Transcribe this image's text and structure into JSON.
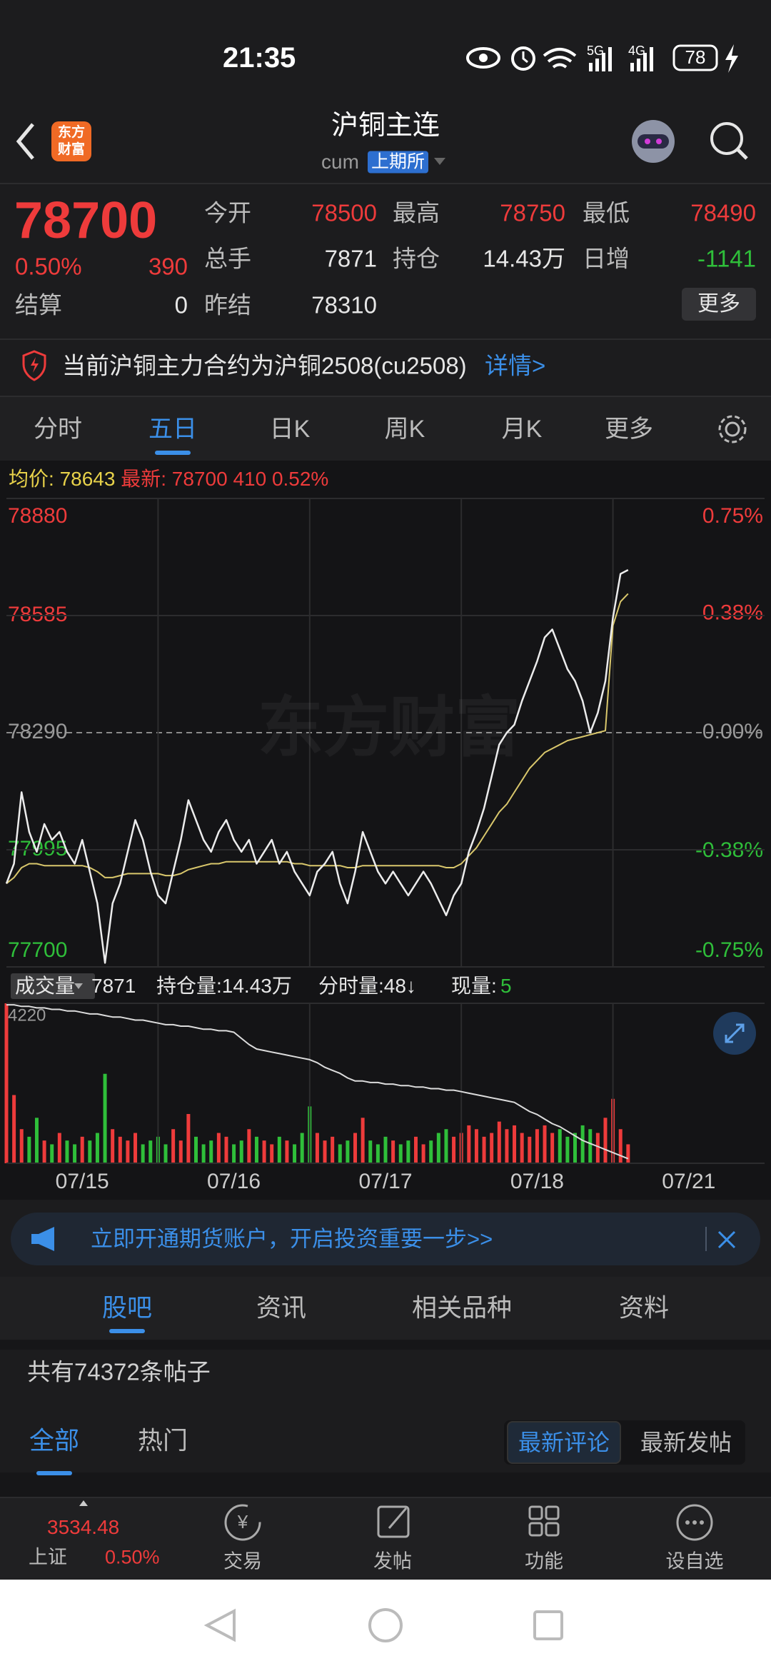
{
  "status_bar": {
    "time": "21:35",
    "network": [
      "5G",
      "4G"
    ],
    "battery": "78"
  },
  "header": {
    "logo": [
      "东方",
      "财富"
    ],
    "title": "沪铜主连",
    "code": "cum",
    "exchange": "上期所"
  },
  "quote": {
    "last": "78700",
    "pct": "0.50%",
    "change": "390",
    "settle_label": "结算",
    "settle": "0",
    "up_color": "#ee3b3b",
    "down_color": "#2fbf3a",
    "flat_color": "#e6e6e6",
    "stats": [
      [
        {
          "label": "今开",
          "value": "78500",
          "tone": "up"
        },
        {
          "label": "最高",
          "value": "78750",
          "tone": "up"
        },
        {
          "label": "最低",
          "value": "78490",
          "tone": "up"
        }
      ],
      [
        {
          "label": "总手",
          "value": "7871",
          "tone": "flat"
        },
        {
          "label": "持仓",
          "value": "14.43万",
          "tone": "flat"
        },
        {
          "label": "日增",
          "value": "-1141",
          "tone": "down"
        }
      ],
      [
        {
          "label": "昨结",
          "value": "78310",
          "tone": "flat"
        }
      ]
    ],
    "more": "更多"
  },
  "notice": {
    "text": "当前沪铜主力合约为沪铜2508(cu2508)",
    "link": "详情>"
  },
  "tabs": {
    "items": [
      "分时",
      "五日",
      "日K",
      "周K",
      "月K",
      "更多"
    ],
    "active": 1
  },
  "info_line": {
    "avg_label": "均价:",
    "avg": "78643",
    "latest_label": "最新:",
    "latest": "78700",
    "change": "410",
    "pct": "0.52%"
  },
  "chart": {
    "type": "line",
    "watermark": "东方财富",
    "ylim": [
      77700,
      78880
    ],
    "yticks": [
      78880,
      78585,
      78290,
      77995,
      77700
    ],
    "y2lim": [
      -0.75,
      0.75
    ],
    "y2ticks": [
      {
        "value": 0.75,
        "label": "0.75%"
      },
      {
        "value": 0.38,
        "label": "0.38%"
      },
      {
        "value": 0,
        "label": "0.00%"
      },
      {
        "value": -0.38,
        "label": "-0.38%"
      },
      {
        "value": -0.75,
        "label": "-0.75%"
      }
    ],
    "xlim": [
      0,
      100
    ],
    "categories": [
      "07/15",
      "07/16",
      "07/17",
      "07/18",
      "07/21"
    ],
    "up_color": "#ee3b3b",
    "down_color": "#2fbf3a",
    "flat_color": "#9a9a9a",
    "price": {
      "color": "#ececec",
      "values": [
        77910,
        77960,
        78140,
        78040,
        77990,
        78060,
        78020,
        78040,
        77990,
        77960,
        78020,
        77940,
        77860,
        77710,
        77860,
        77910,
        77990,
        78070,
        78020,
        77940,
        77880,
        77860,
        77940,
        78020,
        78120,
        78070,
        78020,
        77990,
        78040,
        78070,
        78020,
        77990,
        78020,
        77960,
        77990,
        78020,
        77960,
        77990,
        77940,
        77910,
        77880,
        77940,
        77960,
        77990,
        77910,
        77860,
        77940,
        78040,
        77990,
        77940,
        77910,
        77940,
        77910,
        77880,
        77910,
        77940,
        77910,
        77870,
        77830,
        77880,
        77910,
        77990,
        78040,
        78100,
        78180,
        78260,
        78290,
        78310,
        78370,
        78420,
        78470,
        78530,
        78550,
        78500,
        78450,
        78420,
        78370,
        78290,
        78340,
        78420,
        78580,
        78690,
        78700
      ]
    },
    "average": {
      "color": "#d9c76c",
      "values": [
        77910,
        77925,
        77950,
        77960,
        77960,
        77955,
        77955,
        77955,
        77955,
        77955,
        77955,
        77950,
        77940,
        77925,
        77925,
        77930,
        77935,
        77935,
        77935,
        77935,
        77935,
        77930,
        77930,
        77935,
        77945,
        77950,
        77955,
        77960,
        77960,
        77965,
        77965,
        77965,
        77965,
        77965,
        77965,
        77965,
        77965,
        77965,
        77960,
        77960,
        77955,
        77955,
        77955,
        77955,
        77955,
        77950,
        77950,
        77955,
        77955,
        77955,
        77955,
        77955,
        77955,
        77955,
        77955,
        77955,
        77955,
        77955,
        77950,
        77950,
        77960,
        77980,
        78000,
        78030,
        78060,
        78090,
        78110,
        78140,
        78170,
        78200,
        78220,
        78240,
        78250,
        78260,
        78270,
        78275,
        78280,
        78285,
        78290,
        78295,
        78560,
        78620,
        78640
      ]
    },
    "volume": {
      "ylim": [
        0,
        4220
      ],
      "yticks": [
        4220
      ],
      "values": [
        4220,
        1800,
        900,
        700,
        1200,
        600,
        500,
        800,
        600,
        500,
        700,
        600,
        800,
        2360,
        900,
        700,
        600,
        800,
        500,
        600,
        700,
        500,
        900,
        600,
        1300,
        700,
        500,
        600,
        800,
        700,
        500,
        600,
        900,
        700,
        600,
        500,
        700,
        600,
        500,
        800,
        1500,
        800,
        600,
        700,
        500,
        600,
        800,
        1200,
        600,
        500,
        700,
        600,
        500,
        600,
        700,
        500,
        600,
        800,
        900,
        700,
        800,
        1000,
        900,
        700,
        800,
        1100,
        900,
        1000,
        800,
        700,
        900,
        1000,
        800,
        900,
        700,
        800,
        1000,
        900,
        800,
        1200,
        1700,
        900,
        500
      ]
    },
    "open_interest": {
      "color": "#dcdcdc",
      "ylim": [
        14.4,
        15.45
      ],
      "values": [
        15.44,
        15.44,
        15.43,
        15.43,
        15.42,
        15.42,
        15.41,
        15.41,
        15.4,
        15.4,
        15.39,
        15.38,
        15.38,
        15.37,
        15.36,
        15.36,
        15.35,
        15.34,
        15.34,
        15.33,
        15.32,
        15.31,
        15.31,
        15.3,
        15.3,
        15.29,
        15.28,
        15.28,
        15.27,
        15.27,
        15.26,
        15.22,
        15.18,
        15.15,
        15.14,
        15.13,
        15.12,
        15.11,
        15.1,
        15.09,
        15.08,
        15.06,
        15.03,
        15.01,
        14.99,
        14.96,
        14.94,
        14.94,
        14.93,
        14.93,
        14.92,
        14.92,
        14.91,
        14.91,
        14.9,
        14.9,
        14.89,
        14.89,
        14.88,
        14.88,
        14.87,
        14.86,
        14.85,
        14.84,
        14.83,
        14.82,
        14.81,
        14.8,
        14.77,
        14.74,
        14.72,
        14.69,
        14.66,
        14.64,
        14.61,
        14.58,
        14.55,
        14.53,
        14.51,
        14.49,
        14.47,
        14.45,
        14.43
      ]
    }
  },
  "volume_header": {
    "label": "成交量",
    "volume": "7871",
    "open_interest": "持仓量:14.43万",
    "tick_volume": "分时量:48↓",
    "now_label": "现量:",
    "now": "5"
  },
  "banner": {
    "text": "立即开通期货账户，开启投资重要一步>>"
  },
  "section_tabs": {
    "items": [
      "股吧",
      "资讯",
      "相关品种",
      "资料"
    ],
    "active": 0
  },
  "post_count": "共有74372条帖子",
  "filters": {
    "items": [
      "全部",
      "热门"
    ],
    "active": 0
  },
  "sort": {
    "items": [
      "最新评论",
      "最新发帖"
    ],
    "active": 0
  },
  "bottom_nav": {
    "index_value": "3534.48",
    "index_name": "上证",
    "index_pct": "0.50%",
    "items": [
      "交易",
      "发帖",
      "功能",
      "设自选"
    ]
  }
}
